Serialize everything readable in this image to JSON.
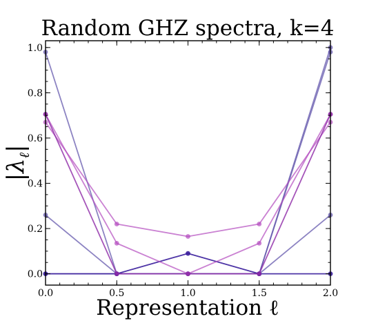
{
  "chart_data": {
    "type": "line",
    "title": "Random GHZ spectra, k=4",
    "xlabel": "Representation ℓ",
    "ylabel": "|λ_ℓ|",
    "x": [
      0.0,
      0.5,
      1.0,
      1.5,
      2.0
    ],
    "xlim": [
      0.0,
      2.0
    ],
    "ylim": [
      -0.05,
      1.03
    ],
    "xticks": [
      "0.0",
      "0.5",
      "1.0",
      "1.5",
      "2.0"
    ],
    "yticks": [
      "0.0",
      "0.2",
      "0.4",
      "0.6",
      "0.8",
      "1.0"
    ],
    "series": [
      {
        "color": "#5b4fa8",
        "opacity": 0.7,
        "values": [
          0.98,
          0.0,
          0.0,
          0.0,
          0.98
        ]
      },
      {
        "color": "#5b4fa8",
        "opacity": 0.7,
        "values": [
          0.26,
          0.0,
          0.0,
          0.0,
          0.26
        ]
      },
      {
        "color": "#5b4fa8",
        "opacity": 0.7,
        "values": [
          0.0,
          0.0,
          0.0,
          0.0,
          1.0
        ]
      },
      {
        "color": "#3a1e9c",
        "opacity": 0.9,
        "values": [
          0.0,
          0.0,
          0.09,
          0.0,
          0.0
        ]
      },
      {
        "color": "#b44cbf",
        "opacity": 0.7,
        "values": [
          0.67,
          0.22,
          0.165,
          0.22,
          0.67
        ]
      },
      {
        "color": "#b44cbf",
        "opacity": 0.7,
        "values": [
          0.705,
          0.135,
          0.0,
          0.135,
          0.705
        ]
      },
      {
        "color": "#8e2aa8",
        "opacity": 0.8,
        "values": [
          0.705,
          0.0,
          0.0,
          0.0,
          0.705
        ]
      }
    ]
  }
}
